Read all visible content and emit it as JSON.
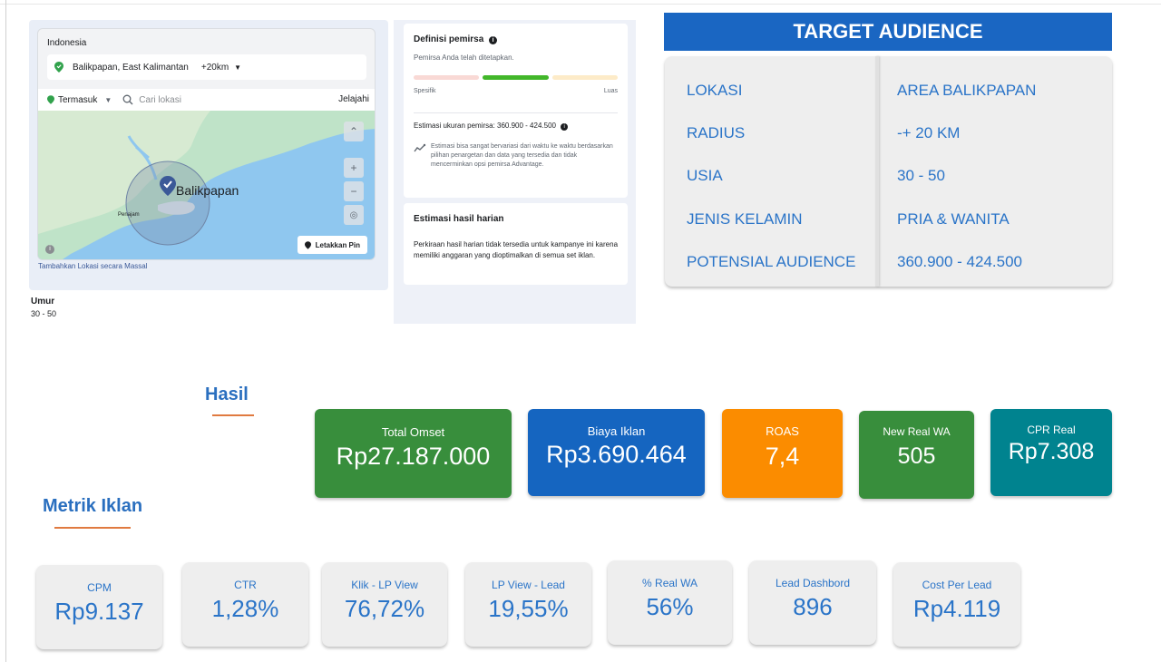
{
  "location_panel": {
    "country": "Indonesia",
    "selected_location": "Balikpapan, East Kalimantan",
    "radius": "+20km",
    "include_mode": "Termasuk",
    "search_placeholder": "Cari lokasi",
    "browse_label": "Jelajahi",
    "map_city_label": "Balikpapan",
    "map_small_label": "Penajam",
    "drop_pin_label": "Letakkan Pin",
    "bulk_location_link": "Tambahkan Lokasi secara Massal",
    "age_label": "Umur",
    "age_value": "30 - 50"
  },
  "audience_definition": {
    "title": "Definisi pemirsa",
    "status": "Pemirsa Anda telah ditetapkan.",
    "meter_left": "Spesifik",
    "meter_right": "Luas",
    "size_estimate": "Estimasi ukuran pemirsa: 360.900 - 424.500",
    "note": "Estimasi bisa sangat bervariasi dari waktu ke waktu berdasarkan pilihan penargetan dan data yang tersedia dan tidak mencerminkan opsi pemirsa Advantage."
  },
  "daily_estimate": {
    "title": "Estimasi hasil harian",
    "text": "Perkiraan hasil harian tidak tersedia untuk kampanye ini karena memiliki anggaran yang dioptimalkan di semua set iklan."
  },
  "target_audience": {
    "title": "TARGET AUDIENCE",
    "rows": [
      {
        "label": "LOKASI",
        "value": "AREA BALIKPAPAN"
      },
      {
        "label": "RADIUS",
        "value": "-+ 20 KM"
      },
      {
        "label": "USIA",
        "value": "30 - 50"
      },
      {
        "label": "JENIS KELAMIN",
        "value": "PRIA & WANITA"
      },
      {
        "label": "POTENSIAL AUDIENCE",
        "value": "360.900 - 424.500"
      }
    ]
  },
  "hasil": {
    "title": "Hasil",
    "cards": [
      {
        "label": "Total Omset",
        "value": "Rp27.187.000",
        "color": "#388e3c"
      },
      {
        "label": "Biaya Iklan",
        "value": "Rp3.690.464",
        "color": "#1565c0"
      },
      {
        "label": "ROAS",
        "value": "7,4",
        "color": "#fb8c00"
      },
      {
        "label": "New Real WA",
        "value": "505",
        "color": "#388e3c"
      },
      {
        "label": "CPR Real",
        "value": "Rp7.308",
        "color": "#00838f"
      }
    ]
  },
  "metrik": {
    "title": "Metrik Iklan",
    "cards": [
      {
        "label": "CPM",
        "value": "Rp9.137"
      },
      {
        "label": "CTR",
        "value": "1,28%"
      },
      {
        "label": "Klik - LP View",
        "value": "76,72%"
      },
      {
        "label": "LP View - Lead",
        "value": "19,55%"
      },
      {
        "label": "% Real WA",
        "value": "56%"
      },
      {
        "label": "Lead Dashbord",
        "value": "896"
      },
      {
        "label": "Cost Per Lead",
        "value": "Rp4.119"
      }
    ]
  }
}
